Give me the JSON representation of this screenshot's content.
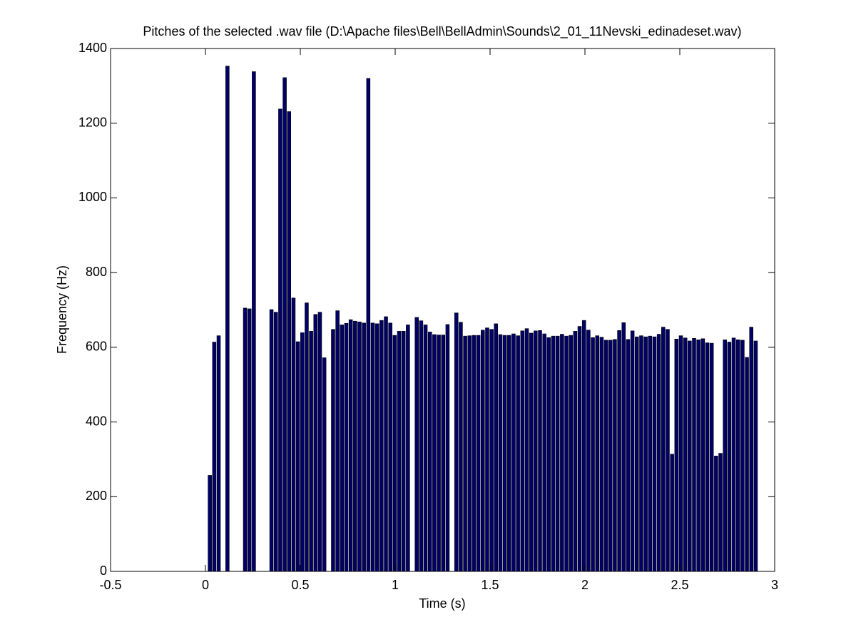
{
  "chart_data": {
    "type": "bar",
    "title": "Pitches of the selected .wav file (D:\\Apache files\\Bell\\BellAdmin\\Sounds\\2_01_11Nevski_edinadeset.wav)",
    "x_label": "Time (s)",
    "y_label": "Frequency (Hz)",
    "color": "#000066",
    "edge_color": "#000000",
    "xlim": [
      -0.5,
      3
    ],
    "xticks": [
      -0.5,
      0,
      0.5,
      1,
      1.5,
      2,
      2.5,
      3
    ],
    "ylim": [
      0,
      1400
    ],
    "yticks": [
      0,
      200,
      400,
      600,
      800,
      1000,
      1200,
      1400
    ],
    "x": [
      0.0232,
      0.0464,
      0.0696,
      0.0928,
      0.116,
      0.1392,
      0.1624,
      0.1856,
      0.2088,
      0.232,
      0.2552,
      0.2784,
      0.3016,
      0.3248,
      0.348,
      0.3712,
      0.3944,
      0.4176,
      0.4408,
      0.464,
      0.4872,
      0.5104,
      0.5336,
      0.5568,
      0.58,
      0.6032,
      0.6264,
      0.6496,
      0.6728,
      0.696,
      0.7192,
      0.7424,
      0.7656,
      0.7888,
      0.812,
      0.8352,
      0.8584,
      0.8816,
      0.9048,
      0.928,
      0.9512,
      0.9744,
      0.9976,
      1.0208,
      1.044,
      1.0672,
      1.0904,
      1.1136,
      1.1368,
      1.16,
      1.1832,
      1.2064,
      1.2296,
      1.2528,
      1.276,
      1.2992,
      1.3224,
      1.3456,
      1.3688,
      1.392,
      1.4152,
      1.4384,
      1.4616,
      1.4848,
      1.508,
      1.5312,
      1.5544,
      1.5776,
      1.6008,
      1.624,
      1.6472,
      1.6704,
      1.6936,
      1.7168,
      1.74,
      1.7632,
      1.7864,
      1.8096,
      1.8328,
      1.856,
      1.8792,
      1.9024,
      1.9256,
      1.9488,
      1.972,
      1.9952,
      2.0184,
      2.0416,
      2.0648,
      2.088,
      2.1112,
      2.1344,
      2.1576,
      2.1808,
      2.204,
      2.2272,
      2.2504,
      2.2736,
      2.2968,
      2.32,
      2.3432,
      2.3664,
      2.3896,
      2.4128,
      2.436,
      2.4592,
      2.4824,
      2.5056,
      2.5288,
      2.552,
      2.5752,
      2.5984,
      2.6216,
      2.6448,
      2.668,
      2.6912,
      2.7144,
      2.7376,
      2.7608,
      2.784,
      2.8072,
      2.8304,
      2.8536,
      2.8768,
      2.9
    ],
    "values": [
      257,
      614,
      631,
      0,
      1353,
      0,
      0,
      0,
      705,
      703,
      1338,
      0,
      0,
      0,
      701,
      694,
      1238,
      1322,
      1231,
      732,
      615,
      639,
      719,
      643,
      688,
      694,
      572,
      0,
      648,
      698,
      660,
      664,
      674,
      670,
      668,
      665,
      1320,
      665,
      663,
      672,
      682,
      665,
      632,
      643,
      643,
      660,
      0,
      680,
      671,
      660,
      641,
      634,
      633,
      633,
      661,
      0,
      692,
      667,
      630,
      631,
      632,
      632,
      646,
      652,
      648,
      663,
      634,
      632,
      632,
      636,
      631,
      644,
      650,
      638,
      644,
      645,
      636,
      626,
      630,
      630,
      635,
      630,
      632,
      643,
      656,
      672,
      646,
      626,
      631,
      627,
      619,
      619,
      621,
      645,
      666,
      621,
      644,
      628,
      631,
      628,
      630,
      628,
      635,
      654,
      648,
      314,
      622,
      631,
      625,
      617,
      624,
      620,
      623,
      612,
      611,
      309,
      316,
      620,
      614,
      625,
      620,
      619,
      573,
      654,
      617
    ]
  }
}
